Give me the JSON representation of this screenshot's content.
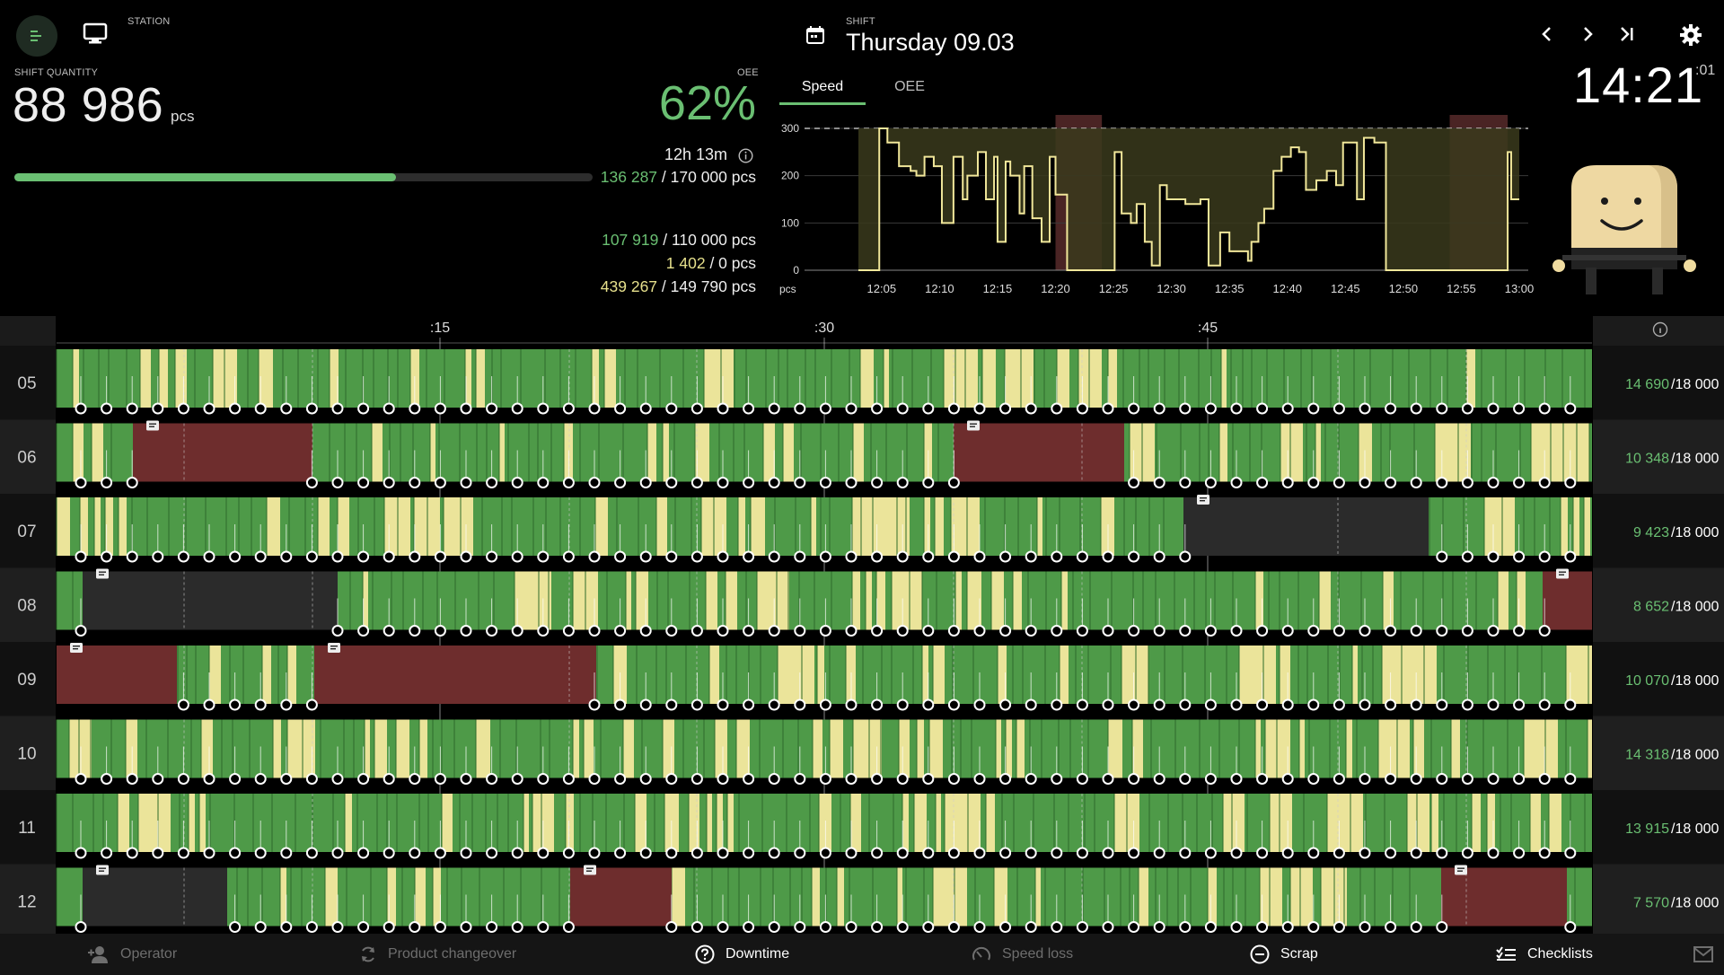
{
  "colors": {
    "green": "#4e9a48",
    "yellow": "#ebe49a",
    "red": "#6e2d2d",
    "grey": "#2b2b2b",
    "accent": "#6abf72",
    "chartLine": "#f1e79a",
    "chartFill": "#3d3d1e"
  },
  "header": {
    "station_label": "STATION",
    "shift_quantity_label": "SHIFT QUANTITY",
    "shift_quantity": "88 986",
    "quantity_unit": "pcs",
    "oee_label": "OEE",
    "oee_value": "62%",
    "progress_fraction": 0.66,
    "time_text": "12h 13m",
    "stats": [
      {
        "a": "136 287",
        "b": " / 170 000 pcs",
        "tone": "a"
      },
      {
        "a": "107 919",
        "b": " / 110 000 pcs",
        "tone": "a"
      },
      {
        "a": "1 402",
        "b": " / 0 pcs",
        "tone": "y"
      },
      {
        "a": "439 267",
        "b": " / 149 790 pcs",
        "tone": "y"
      }
    ],
    "shift_label": "SHIFT",
    "shift_date": "Thursday 09.03",
    "tabs": [
      "Speed",
      "OEE"
    ],
    "clock": "14:21",
    "clock_seconds": ":01"
  },
  "chart_data": {
    "type": "area",
    "ylabel": "pcs",
    "x": [
      "12:05",
      "12:10",
      "12:15",
      "12:20",
      "12:25",
      "12:30",
      "12:35",
      "12:40",
      "12:45",
      "12:50",
      "12:55",
      "13:00"
    ],
    "yticks": [
      0,
      100,
      200,
      300
    ],
    "ylim": [
      0,
      300
    ],
    "target": 300,
    "downtime": [
      [
        "12:20",
        "12:24"
      ],
      [
        "12:54",
        "12:59"
      ]
    ],
    "minutes_from_1203": [
      0,
      1.8,
      2.5,
      3.5,
      4.5,
      5,
      5.7,
      6.5,
      7.2,
      8.2,
      9,
      9.4,
      10.3,
      11,
      11.7,
      12,
      12.7,
      13.1,
      13.9,
      14.3,
      15,
      15.8,
      16.5,
      17,
      18,
      21,
      22.1,
      22.7,
      23.5,
      24,
      24.7,
      25.3,
      26,
      26.6,
      27.3,
      28.2,
      29.5,
      30.2,
      31.2,
      32,
      33.6,
      33.9,
      34.5,
      35,
      35.8,
      36.5,
      37.3,
      38,
      38.6,
      39.5,
      40.4,
      41.2,
      41.8,
      43,
      43.6,
      44.5,
      45.5,
      46.5,
      47.2,
      48,
      48.7,
      50,
      51,
      52,
      53,
      55,
      56,
      56.3,
      57
    ],
    "speed": [
      0,
      300,
      270,
      220,
      210,
      200,
      240,
      220,
      100,
      240,
      150,
      200,
      250,
      150,
      240,
      60,
      230,
      200,
      120,
      220,
      110,
      60,
      240,
      160,
      0,
      0,
      250,
      120,
      100,
      140,
      60,
      10,
      180,
      150,
      150,
      140,
      150,
      10,
      80,
      40,
      20,
      60,
      100,
      130,
      210,
      240,
      260,
      250,
      170,
      190,
      210,
      180,
      270,
      150,
      280,
      270,
      0,
      0,
      0,
      0,
      0,
      0,
      0,
      0,
      0,
      0,
      250,
      150,
      150
    ],
    "sample_values_note": ""
  },
  "timeline": {
    "ticks": [
      ":15",
      ":30",
      ":45"
    ],
    "rows": [
      {
        "label": "05",
        "count": "14 690",
        "target": "/18 000"
      },
      {
        "label": "06",
        "count": "10 348",
        "target": "/18 000"
      },
      {
        "label": "07",
        "count": "9 423",
        "target": "/18 000"
      },
      {
        "label": "08",
        "count": "8 652",
        "target": "/18 000"
      },
      {
        "label": "09",
        "count": "10 070",
        "target": "/18 000"
      },
      {
        "label": "10",
        "count": "14 318",
        "target": "/18 000"
      },
      {
        "label": "11",
        "count": "13 915",
        "target": "/18 000"
      },
      {
        "label": "12",
        "count": "7 570",
        "target": "/18 000"
      }
    ]
  },
  "bottom_bar": [
    {
      "name": "operator",
      "label": "Operator",
      "active": false
    },
    {
      "name": "product-changeover",
      "label": "Product changeover",
      "active": false
    },
    {
      "name": "downtime",
      "label": "Downtime",
      "active": true
    },
    {
      "name": "speed-loss",
      "label": "Speed loss",
      "active": false
    },
    {
      "name": "scrap",
      "label": "Scrap",
      "active": true
    },
    {
      "name": "checklists",
      "label": "Checklists",
      "active": true
    }
  ]
}
